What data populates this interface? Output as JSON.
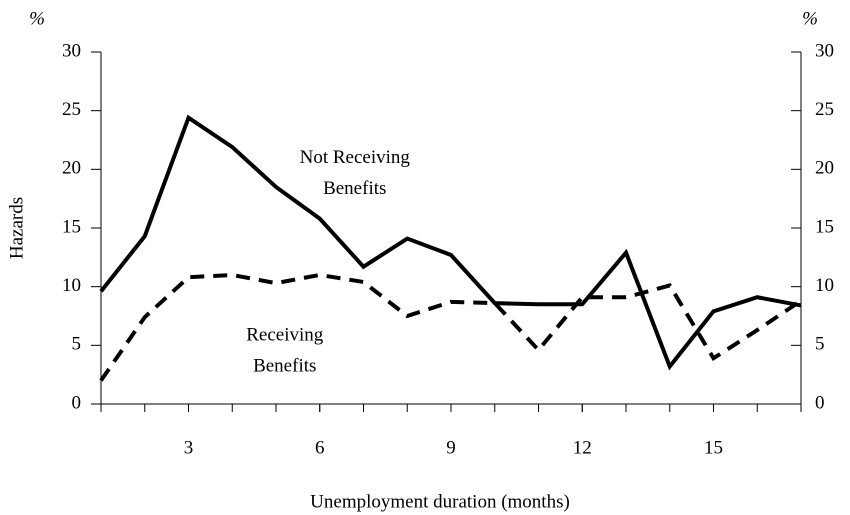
{
  "chart_data": {
    "type": "line",
    "y_label": "Hazards",
    "x_label": "Unemployment duration (months)",
    "y_unit": "%",
    "y2_unit": "%",
    "x": [
      1,
      2,
      3,
      4,
      5,
      6,
      7,
      8,
      9,
      10,
      11,
      12,
      13,
      14,
      15,
      16,
      17
    ],
    "series": [
      {
        "color": "#000000",
        "dash": "solid",
        "values": [
          9.6,
          14.3,
          24.4,
          21.9,
          18.5,
          15.8,
          11.7,
          14.1,
          12.7,
          8.6,
          8.5,
          8.5,
          12.9,
          3.2,
          7.9,
          9.1,
          8.4
        ]
      },
      {
        "color": "#000000",
        "dash": "dashed",
        "values": [
          2.0,
          7.4,
          10.8,
          11.0,
          10.3,
          11.0,
          10.4,
          7.5,
          8.7,
          8.6,
          4.6,
          9.1,
          9.1,
          10.1,
          3.9,
          6.3,
          8.8
        ]
      }
    ],
    "annotations": [
      {
        "lines": [
          "Not Receiving",
          "Benefits"
        ],
        "x": 6.8,
        "y": 20.9
      },
      {
        "lines": [
          "Receiving",
          "Benefits"
        ],
        "x": 5.2,
        "y": 5.8
      }
    ],
    "xlim": [
      1,
      17
    ],
    "xticks": [
      3,
      6,
      9,
      12,
      15
    ],
    "xticks_minor": [
      1,
      2,
      3,
      4,
      5,
      6,
      7,
      8,
      9,
      10,
      11,
      12,
      13,
      14,
      15,
      16,
      17
    ],
    "ylim": [
      0,
      30
    ],
    "yticks": [
      0,
      5,
      10,
      15,
      20,
      25,
      30
    ],
    "y2lim": [
      0,
      30
    ],
    "y2ticks": [
      0,
      5,
      10,
      15,
      20,
      25,
      30
    ],
    "grid": false
  }
}
